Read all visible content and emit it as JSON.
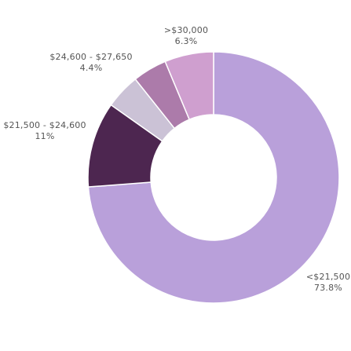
{
  "chart_data": {
    "type": "pie",
    "variant": "donut",
    "title": "",
    "slices": [
      {
        "label": "<$21,500",
        "value": 73.8,
        "value_label": "73.8%",
        "color": "#b9a0da"
      },
      {
        "label": "$21,500 - $24,600",
        "value": 11,
        "value_label": "11%",
        "color": "#4d2650"
      },
      {
        "label": "",
        "value": 4.5,
        "value_label": "",
        "color": "#cbc2d6"
      },
      {
        "label": "$24,600 - $27,650",
        "value": 4.4,
        "value_label": "4.4%",
        "color": "#ac7baa"
      },
      {
        "label": ">$30,000",
        "value": 6.3,
        "value_label": "6.3%",
        "color": "#cf9fcf"
      }
    ]
  }
}
